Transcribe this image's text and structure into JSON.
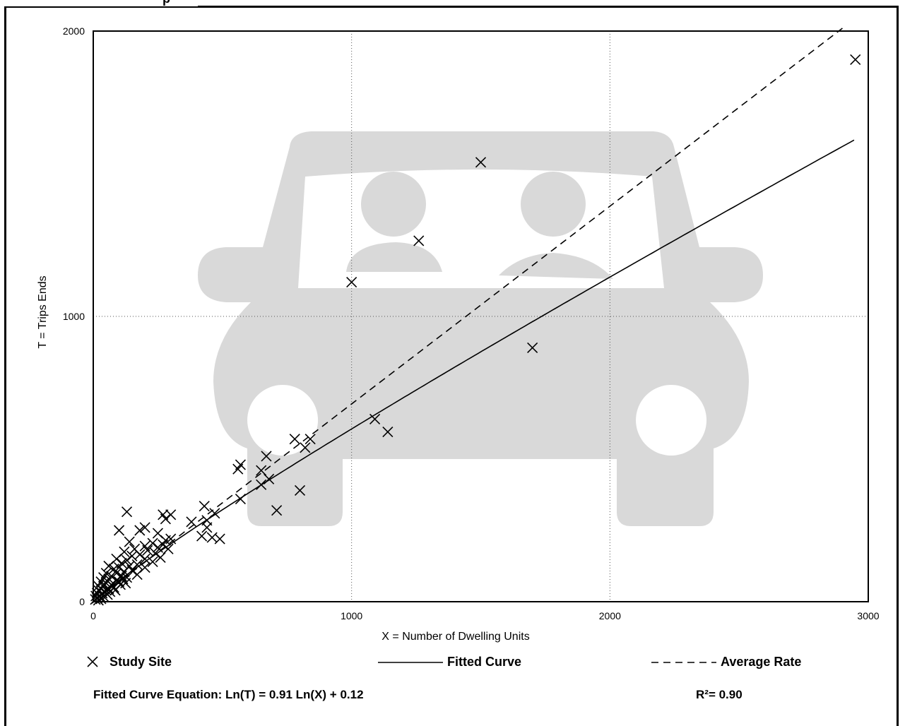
{
  "header": {
    "title_fragment": "p"
  },
  "chart_data": {
    "type": "scatter",
    "xlabel": "X = Number of Dwelling Units",
    "ylabel": "T = Trips Ends",
    "xlim": [
      0,
      3000
    ],
    "ylim": [
      0,
      2000
    ],
    "x_ticks": [
      0,
      1000,
      2000,
      3000
    ],
    "y_ticks": [
      0,
      1000,
      2000
    ],
    "grid": true,
    "background_icon": "car-with-two-occupants-icon",
    "series": [
      {
        "name": "Study Site",
        "type": "scatter",
        "marker": "x",
        "points": [
          [
            2950,
            1900
          ],
          [
            1500,
            1540
          ],
          [
            1260,
            1265
          ],
          [
            1000,
            1120
          ],
          [
            1700,
            890
          ],
          [
            1090,
            640
          ],
          [
            1140,
            595
          ],
          [
            780,
            570
          ],
          [
            840,
            570
          ],
          [
            820,
            540
          ],
          [
            670,
            510
          ],
          [
            570,
            480
          ],
          [
            560,
            465
          ],
          [
            650,
            460
          ],
          [
            680,
            430
          ],
          [
            650,
            410
          ],
          [
            800,
            390
          ],
          [
            570,
            360
          ],
          [
            710,
            320
          ],
          [
            430,
            335
          ],
          [
            470,
            310
          ],
          [
            300,
            305
          ],
          [
            270,
            305
          ],
          [
            130,
            315
          ],
          [
            280,
            290
          ],
          [
            440,
            285
          ],
          [
            380,
            280
          ],
          [
            440,
            260
          ],
          [
            200,
            260
          ],
          [
            100,
            250
          ],
          [
            250,
            240
          ],
          [
            180,
            250
          ],
          [
            420,
            230
          ],
          [
            460,
            225
          ],
          [
            490,
            220
          ],
          [
            300,
            220
          ],
          [
            280,
            215
          ],
          [
            140,
            210
          ],
          [
            230,
            205
          ],
          [
            270,
            200
          ],
          [
            200,
            195
          ],
          [
            250,
            190
          ],
          [
            160,
            185
          ],
          [
            290,
            185
          ],
          [
            210,
            180
          ],
          [
            120,
            175
          ],
          [
            240,
            170
          ],
          [
            180,
            165
          ],
          [
            150,
            160
          ],
          [
            260,
            155
          ],
          [
            90,
            150
          ],
          [
            200,
            150
          ],
          [
            130,
            145
          ],
          [
            230,
            140
          ],
          [
            110,
            135
          ],
          [
            170,
            130
          ],
          [
            60,
            125
          ],
          [
            140,
            125
          ],
          [
            100,
            120
          ],
          [
            200,
            120
          ],
          [
            80,
            115
          ],
          [
            150,
            110
          ],
          [
            120,
            105
          ],
          [
            50,
            100
          ],
          [
            90,
            100
          ],
          [
            170,
            95
          ],
          [
            70,
            90
          ],
          [
            110,
            90
          ],
          [
            40,
            85
          ],
          [
            130,
            85
          ],
          [
            60,
            80
          ],
          [
            90,
            75
          ],
          [
            30,
            70
          ],
          [
            100,
            70
          ],
          [
            50,
            65
          ],
          [
            70,
            60
          ],
          [
            20,
            55
          ],
          [
            40,
            55
          ],
          [
            80,
            50
          ],
          [
            30,
            45
          ],
          [
            60,
            45
          ],
          [
            20,
            40
          ],
          [
            45,
            35
          ],
          [
            15,
            30
          ],
          [
            35,
            30
          ],
          [
            55,
            25
          ],
          [
            10,
            20
          ],
          [
            25,
            20
          ],
          [
            40,
            18
          ],
          [
            15,
            12
          ],
          [
            30,
            10
          ],
          [
            8,
            8
          ],
          [
            20,
            5
          ],
          [
            50,
            40
          ],
          [
            65,
            35
          ],
          [
            75,
            55
          ],
          [
            85,
            40
          ],
          [
            105,
            60
          ],
          [
            115,
            80
          ],
          [
            125,
            65
          ]
        ]
      },
      {
        "name": "Fitted Curve",
        "type": "line",
        "style": "solid",
        "equation": {
          "a": 0.91,
          "b": 0.12
        }
      },
      {
        "name": "Average Rate",
        "type": "line",
        "style": "dashed",
        "x": [
          0,
          2900
        ],
        "y": [
          0,
          2010
        ]
      }
    ],
    "legend_placement": "bottom"
  },
  "legend": {
    "study_site": "Study Site",
    "fitted_curve": "Fitted Curve",
    "average_rate": "Average Rate"
  },
  "footer": {
    "equation": "Fitted Curve Equation: Ln(T) = 0.91 Ln(X) + 0.12",
    "r_squared": "R²= 0.90"
  },
  "colors": {
    "background_icon": "#d9d9d9",
    "ink": "#000000"
  }
}
